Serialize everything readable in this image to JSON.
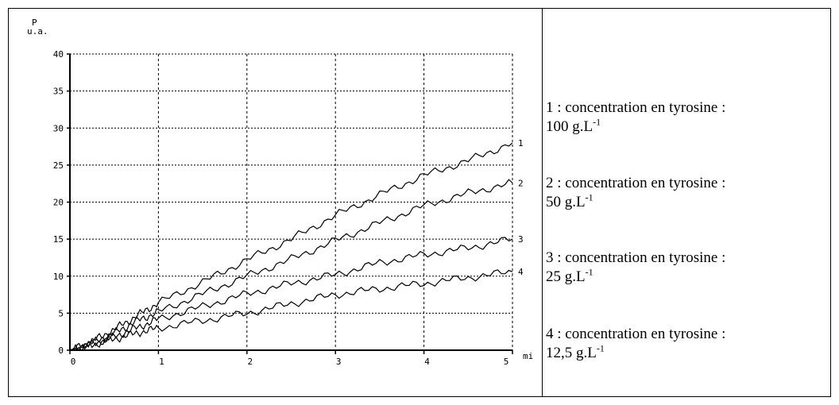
{
  "chart_data": {
    "type": "line",
    "ylabel_top": "P",
    "ylabel_unit": "u.a.",
    "xlabel_unit": "mi",
    "xlim": [
      0,
      5
    ],
    "ylim": [
      0,
      40
    ],
    "x_ticks": [
      "0",
      "1",
      "2",
      "3",
      "4",
      "5"
    ],
    "y_ticks": [
      "0",
      "5",
      "10",
      "15",
      "20",
      "25",
      "30",
      "35",
      "40"
    ],
    "grid": true,
    "series": [
      {
        "name": "1",
        "x": [
          0,
          0.25,
          0.5,
          0.75,
          1,
          1.5,
          2,
          2.5,
          3,
          3.5,
          4,
          4.5,
          5
        ],
        "y": [
          0,
          1.2,
          2.8,
          4.6,
          6.4,
          9.2,
          12.2,
          15.0,
          18.2,
          21.0,
          23.6,
          25.6,
          28.0
        ]
      },
      {
        "name": "2",
        "x": [
          0,
          0.25,
          0.5,
          0.75,
          1,
          1.5,
          2,
          2.5,
          3,
          3.5,
          4,
          4.5,
          5
        ],
        "y": [
          0,
          1.0,
          2.3,
          3.9,
          5.2,
          7.6,
          10.0,
          12.3,
          14.8,
          17.2,
          19.5,
          21.2,
          22.6
        ]
      },
      {
        "name": "3",
        "x": [
          0,
          0.25,
          0.5,
          0.75,
          1,
          1.5,
          2,
          2.5,
          3,
          3.5,
          4,
          4.5,
          5
        ],
        "y": [
          0,
          0.8,
          1.8,
          3.0,
          4.2,
          5.9,
          7.6,
          9.0,
          10.2,
          11.8,
          12.9,
          13.8,
          15.0
        ]
      },
      {
        "name": "4",
        "x": [
          0,
          0.25,
          0.5,
          0.75,
          1,
          1.5,
          2,
          2.5,
          3,
          3.5,
          4,
          4.5,
          5
        ],
        "y": [
          0,
          0.7,
          1.5,
          2.3,
          3.0,
          4.0,
          5.0,
          6.3,
          7.5,
          8.3,
          9.0,
          9.8,
          10.6
        ]
      }
    ]
  },
  "legend": {
    "items": [
      {
        "line1": "1 : concentration en tyrosine :",
        "value": "100 g.L",
        "exp": "-1"
      },
      {
        "line1": "2 : concentration en tyrosine :",
        "value": "50 g.L",
        "exp": "-1"
      },
      {
        "line1": "3 : concentration en tyrosine :",
        "value": "25 g.L",
        "exp": "-1"
      },
      {
        "line1": "4 : concentration en tyrosine :",
        "value": "12,5 g.L",
        "exp": "-1"
      }
    ]
  }
}
